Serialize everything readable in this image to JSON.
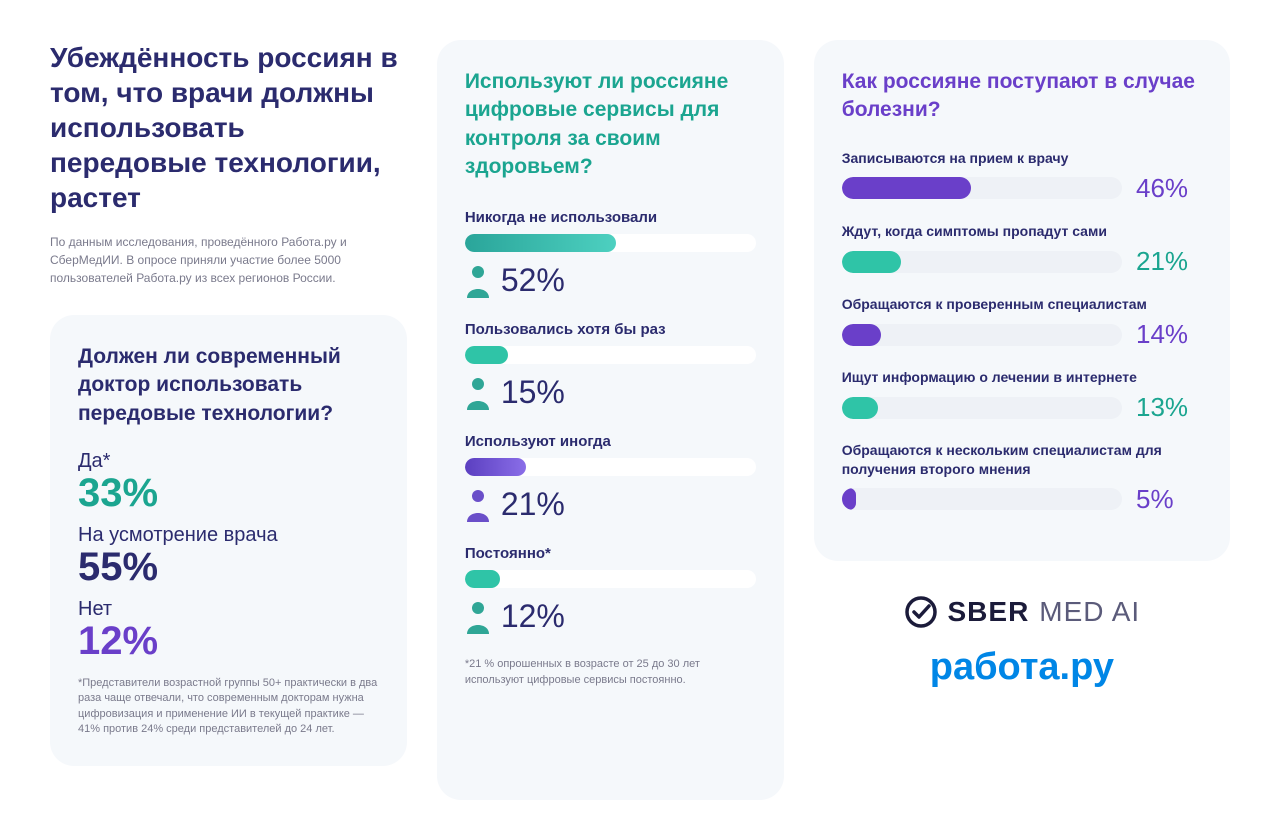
{
  "colors": {
    "navy": "#2b2b6e",
    "teal": "#1ba590",
    "tealFill": "#2fc4a7",
    "purple": "#6a3fc9",
    "blueBrand": "#0086e6",
    "cardBg": "#f5f8fb",
    "trackBg": "#eef1f6",
    "muted": "#7a7a8c"
  },
  "header": {
    "title": "Убеждённость россиян в том, что врачи должны использовать передовые технологии, растет",
    "subtitle": "По данным исследования, проведённого Работа.ру и СберМедИИ. В опросе приняли участие более 5000 пользователей Работа.ру из всех регионов России."
  },
  "panel1": {
    "title": "Должен ли современный доктор использовать передовые технологии?",
    "options": [
      {
        "label": "Да*",
        "pct": "33%",
        "pctColor": "#1ba590"
      },
      {
        "label": "На усмотрение врача",
        "pct": "55%",
        "pctColor": "#2b2b6e"
      },
      {
        "label": "Нет",
        "pct": "12%",
        "pctColor": "#6a3fc9"
      }
    ],
    "footnote": "*Представители возрастной группы 50+ практически в два раза чаще отвечали, что современным докторам нужна цифровизация и применение ИИ в текущей практике — 41% против 24% среди представителей до 24 лет."
  },
  "panel2": {
    "title": "Используют ли россияне цифровые сервисы для контроля за своим здоровьем?",
    "items": [
      {
        "label": "Никогда не использовали",
        "pct": 52,
        "pctText": "52%",
        "gradient": "grad-teal",
        "icon": "#2fa696"
      },
      {
        "label": "Пользовались хотя бы раз",
        "pct": 15,
        "pctText": "15%",
        "gradient": "solid-teal",
        "icon": "#2fa696"
      },
      {
        "label": "Используют иногда",
        "pct": 21,
        "pctText": "21%",
        "gradient": "grad-purple",
        "icon": "#6a4fc9"
      },
      {
        "label": "Постоянно*",
        "pct": 12,
        "pctText": "12%",
        "gradient": "solid-teal",
        "icon": "#2fa696"
      }
    ],
    "footnote": "*21 % опрошенных в возрасте от 25 до 30 лет используют цифровые сервисы постоянно."
  },
  "panel3": {
    "title": "Как россияне поступают в случае болезни?",
    "items": [
      {
        "label": "Записываются на прием к врачу",
        "pct": 46,
        "pctText": "46%",
        "color": "#6a3fc9",
        "pctColor": "#6a3fc9"
      },
      {
        "label": "Ждут, когда симптомы пропадут сами",
        "pct": 21,
        "pctText": "21%",
        "color": "#2fc4a7",
        "pctColor": "#1ba590"
      },
      {
        "label": "Обращаются к проверенным специалистам",
        "pct": 14,
        "pctText": "14%",
        "color": "#6a3fc9",
        "pctColor": "#6a3fc9"
      },
      {
        "label": "Ищут информацию о лечении в интернете",
        "pct": 13,
        "pctText": "13%",
        "color": "#2fc4a7",
        "pctColor": "#1ba590"
      },
      {
        "label": "Обращаются к нескольким специалистам для получения второго мнения",
        "pct": 5,
        "pctText": "5%",
        "color": "#6a3fc9",
        "pctColor": "#6a3fc9"
      }
    ]
  },
  "logos": {
    "sber1": "SBER",
    "sber2": "MED AI",
    "rabota": "работа.ру"
  }
}
